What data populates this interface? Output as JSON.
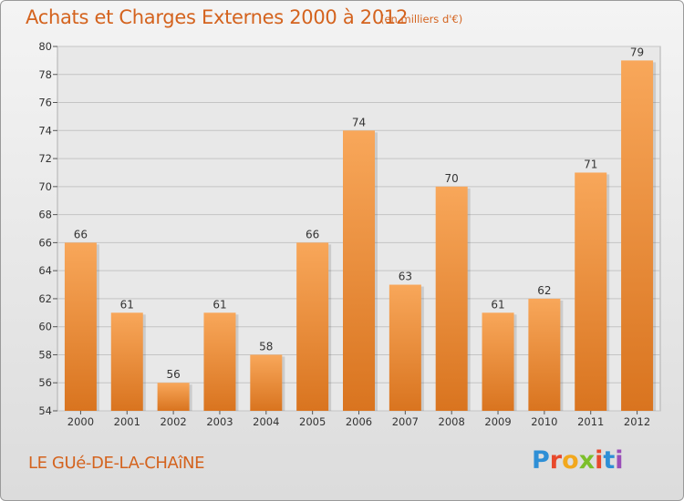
{
  "header": {
    "title": "Achats et Charges Externes 2000 à 2012",
    "subtitle": "(en milliers d'€)"
  },
  "footer": {
    "town": "LE GUé-DE-LA-CHAîNE",
    "logo_letters": [
      "P",
      "r",
      "o",
      "x",
      "i",
      "t",
      "i"
    ],
    "logo_colors": [
      "#2e8fd6",
      "#e8492c",
      "#f2a81d",
      "#7cbf2a",
      "#e8492c",
      "#2e8fd6",
      "#9b4fb8"
    ]
  },
  "colors": {
    "bar_top": "#f8a75a",
    "bar_bottom": "#d9741f",
    "text_accent": "#d4631e"
  },
  "chart_data": {
    "type": "bar",
    "categories": [
      "2000",
      "2001",
      "2002",
      "2003",
      "2004",
      "2005",
      "2006",
      "2007",
      "2008",
      "2009",
      "2010",
      "2011",
      "2012"
    ],
    "values": [
      66,
      61,
      56,
      61,
      58,
      66,
      74,
      63,
      70,
      61,
      62,
      71,
      79
    ],
    "ylim": [
      54,
      80
    ],
    "yticks": [
      54,
      56,
      58,
      60,
      62,
      64,
      66,
      68,
      70,
      72,
      74,
      76,
      78,
      80
    ],
    "grid": true,
    "xlabel": "",
    "ylabel": ""
  }
}
